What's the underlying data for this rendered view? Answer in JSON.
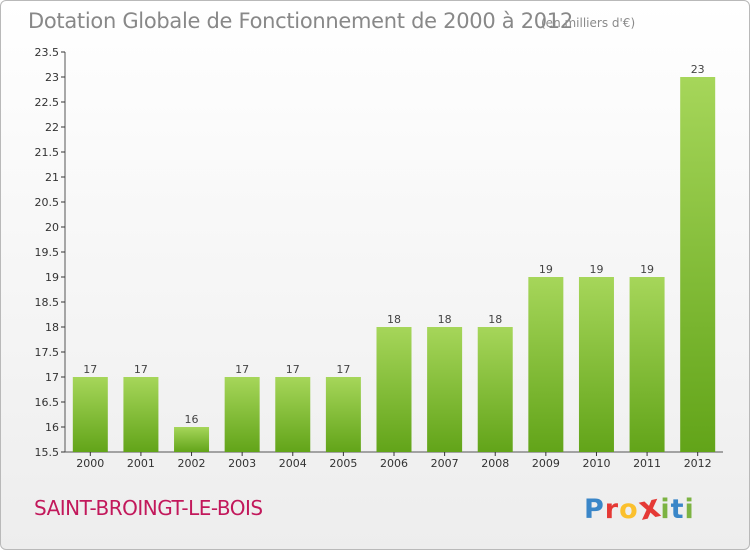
{
  "title": "Dotation Globale de Fonctionnement de 2000 à 2012",
  "subtitle": "(en milliers d'€)",
  "commune": "SAINT-BROINGT-LE-BOIS",
  "logo": {
    "text": "Proxiti",
    "letters": [
      {
        "ch": "P",
        "color": "#3a86c8"
      },
      {
        "ch": "r",
        "color": "#e53935"
      },
      {
        "ch": "o",
        "color": "#fbc02d"
      },
      {
        "ch": "x",
        "color": "#e53935"
      },
      {
        "ch": "i",
        "color": "#7cb342"
      },
      {
        "ch": "t",
        "color": "#3a86c8"
      },
      {
        "ch": "i",
        "color": "#7cb342"
      }
    ]
  },
  "colors": {
    "bar_top": "#a6d65a",
    "bar_bottom": "#62a419",
    "axis": "#555555",
    "grid_tick": "#333333"
  },
  "chart_data": {
    "type": "bar",
    "categories": [
      "2000",
      "2001",
      "2002",
      "2003",
      "2004",
      "2005",
      "2006",
      "2007",
      "2008",
      "2009",
      "2010",
      "2011",
      "2012"
    ],
    "values": [
      17,
      17,
      16,
      17,
      17,
      17,
      18,
      18,
      18,
      19,
      19,
      19,
      23
    ],
    "data_labels": [
      "17",
      "17",
      "16",
      "17",
      "17",
      "17",
      "18",
      "18",
      "18",
      "19",
      "19",
      "19",
      "23"
    ],
    "title": "Dotation Globale de Fonctionnement de 2000 à 2012",
    "ylim": [
      15.5,
      23.5
    ],
    "yticks": [
      "15.5",
      "16",
      "16.5",
      "17",
      "17.5",
      "18",
      "18.5",
      "19",
      "19.5",
      "20",
      "20.5",
      "21",
      "21.5",
      "22",
      "22.5",
      "23",
      "23.5"
    ],
    "grid": false,
    "legend": "none"
  }
}
